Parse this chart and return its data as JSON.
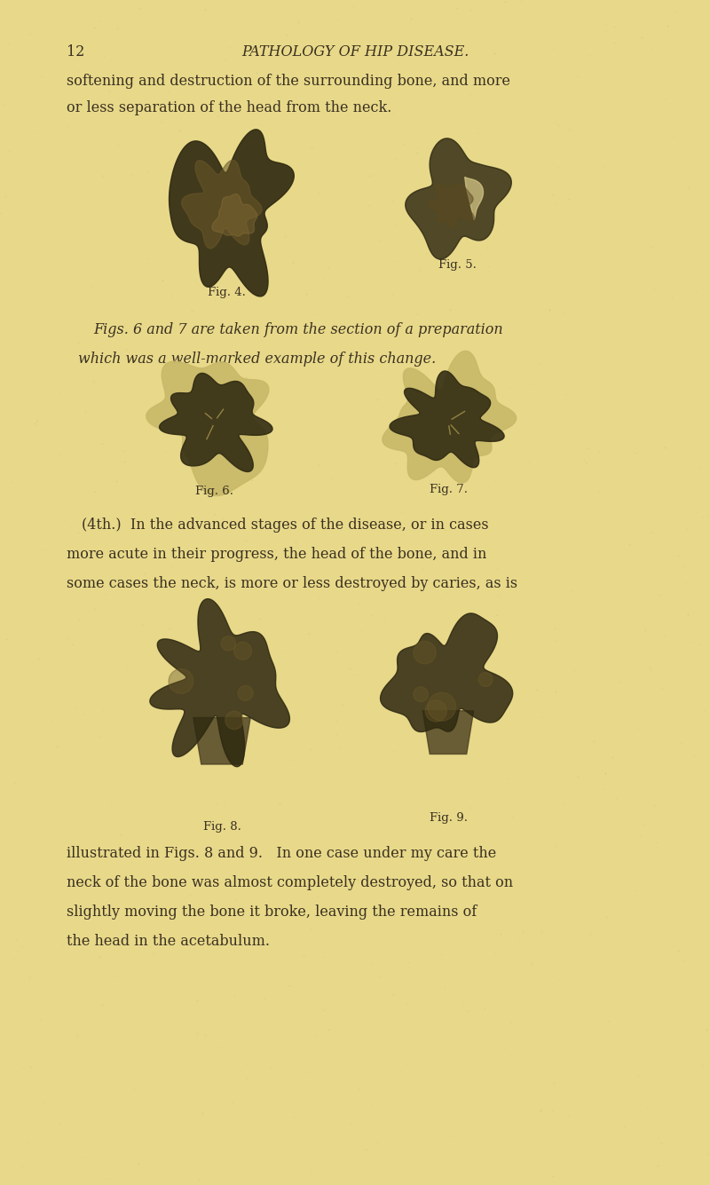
{
  "background_color": "#e8d98a",
  "text_color": "#3a3020",
  "header_number": "12",
  "header_title": "PATHOLOGY OF HIP DISEASE.",
  "para1_line1": "softening and destruction of the surrounding bone, and more",
  "para1_line2": "or less separation of the head from the neck.",
  "fig4_caption": "Fig. 4.",
  "fig5_caption": "Fig. 5.",
  "para2_line1": "Figs. 6 and 7 are taken from the section of a preparation",
  "para2_line2": "which was a well-marked example of this change.",
  "fig6_caption": "Fig. 6.",
  "fig7_caption": "Fig. 7.",
  "para3_line1": "(4th.)  In the advanced stages of the disease, or in cases",
  "para3_line2": "more acute in their progress, the head of the bone, and in",
  "para3_line3": "some cases the neck, is more or less destroyed by caries, as is",
  "fig8_caption": "Fig. 8.",
  "fig9_caption": "Fig. 9.",
  "para4_line1": "illustrated in Figs. 8 and 9.   In one case under my care the",
  "para4_line2": "neck of the bone was almost completely destroyed, so that on",
  "para4_line3": "slightly moving the bone it broke, leaving the remains of",
  "para4_line4": "the head in the acetabulum.",
  "fig_text_size": 9.5,
  "body_text_size": 11.5,
  "header_text_size": 11.5
}
